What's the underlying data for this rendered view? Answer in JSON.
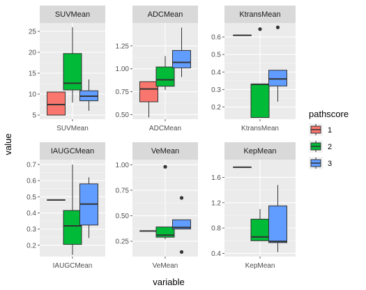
{
  "chart_data": {
    "type": "boxplot",
    "xlabel": "variable",
    "ylabel": "value",
    "legend": {
      "title": "pathscore",
      "position": "right",
      "items": [
        {
          "label": "1",
          "color": "#F8766D"
        },
        {
          "label": "2",
          "color": "#00BA38"
        },
        {
          "label": "3",
          "color": "#619CFF"
        }
      ]
    },
    "panels": [
      {
        "strip": "SUVMean",
        "category": "SUVMean",
        "ylim": [
          4.0,
          27.0
        ],
        "yticks": [
          5,
          10,
          15,
          20,
          25
        ],
        "ytick_labels": [
          "5",
          "10",
          "15",
          "20",
          "25"
        ],
        "boxes": [
          {
            "group": "1",
            "min": 5.0,
            "q1": 5.0,
            "median": 7.5,
            "q3": 10.5,
            "max": 10.5,
            "outliers": []
          },
          {
            "group": "2",
            "min": 8.0,
            "q1": 11.0,
            "median": 12.6,
            "q3": 19.7,
            "max": 26.0,
            "outliers": []
          },
          {
            "group": "3",
            "min": 6.0,
            "q1": 8.4,
            "median": 9.5,
            "q3": 10.8,
            "max": 13.5,
            "outliers": []
          }
        ]
      },
      {
        "strip": "ADCMean",
        "category": "ADCMean",
        "ylim": [
          0.45,
          1.5
        ],
        "yticks": [
          0.5,
          0.75,
          1.0,
          1.25
        ],
        "ytick_labels": [
          "0.50",
          "0.75",
          "1.00",
          "1.25"
        ],
        "boxes": [
          {
            "group": "1",
            "min": 0.47,
            "q1": 0.64,
            "median": 0.78,
            "q3": 0.86,
            "max": 0.86,
            "outliers": []
          },
          {
            "group": "2",
            "min": 0.77,
            "q1": 0.81,
            "median": 0.88,
            "q3": 1.02,
            "max": 1.14,
            "outliers": []
          },
          {
            "group": "3",
            "min": 0.91,
            "q1": 1.01,
            "median": 1.07,
            "q3": 1.2,
            "max": 1.45,
            "outliers": []
          }
        ]
      },
      {
        "strip": "KtransMean",
        "category": "KtransMean",
        "ylim": [
          0.13,
          0.68
        ],
        "yticks": [
          0.2,
          0.3,
          0.4,
          0.5,
          0.6
        ],
        "ytick_labels": [
          "0.2",
          "0.3",
          "0.4",
          "0.5",
          "0.6"
        ],
        "boxes": [
          {
            "group": "1",
            "min": 0.61,
            "q1": 0.61,
            "median": 0.61,
            "q3": 0.61,
            "max": 0.61,
            "outliers": []
          },
          {
            "group": "2",
            "min": 0.14,
            "q1": 0.14,
            "median": 0.33,
            "q3": 0.33,
            "max": 0.33,
            "outliers": [
              0.645
            ]
          },
          {
            "group": "3",
            "min": 0.23,
            "q1": 0.32,
            "median": 0.36,
            "q3": 0.41,
            "max": 0.41,
            "outliers": [
              0.655
            ]
          }
        ]
      },
      {
        "strip": "IAUGCMean",
        "category": "IAUGCMean",
        "ylim": [
          0.13,
          0.73
        ],
        "yticks": [
          0.2,
          0.3,
          0.4,
          0.5,
          0.6,
          0.7
        ],
        "ytick_labels": [
          "0.2",
          "0.3",
          "0.4",
          "0.5",
          "0.6",
          "0.7"
        ],
        "boxes": [
          {
            "group": "1",
            "min": 0.48,
            "q1": 0.48,
            "median": 0.48,
            "q3": 0.48,
            "max": 0.48,
            "outliers": []
          },
          {
            "group": "2",
            "min": 0.14,
            "q1": 0.205,
            "median": 0.32,
            "q3": 0.415,
            "max": 0.7,
            "outliers": []
          },
          {
            "group": "3",
            "min": 0.245,
            "q1": 0.325,
            "median": 0.455,
            "q3": 0.58,
            "max": 0.62,
            "outliers": []
          }
        ]
      },
      {
        "strip": "VeMean",
        "category": "VeMean",
        "ylim": [
          0.1,
          1.05
        ],
        "yticks": [
          0.25,
          0.5,
          0.75,
          1.0
        ],
        "ytick_labels": [
          "0.25",
          "0.50",
          "0.75",
          "1.00"
        ],
        "boxes": [
          {
            "group": "1",
            "min": 0.35,
            "q1": 0.35,
            "median": 0.35,
            "q3": 0.35,
            "max": 0.35,
            "outliers": []
          },
          {
            "group": "2",
            "min": 0.27,
            "q1": 0.29,
            "median": 0.31,
            "q3": 0.39,
            "max": 0.39,
            "outliers": [
              0.98
            ]
          },
          {
            "group": "3",
            "min": 0.37,
            "q1": 0.37,
            "median": 0.385,
            "q3": 0.46,
            "max": 0.46,
            "outliers": [
              0.675,
              0.145
            ]
          }
        ]
      },
      {
        "strip": "KepMean",
        "category": "KepMean",
        "ylim": [
          0.35,
          1.88
        ],
        "yticks": [
          0.4,
          0.8,
          1.2,
          1.6
        ],
        "ytick_labels": [
          "0.4",
          "0.8",
          "1.2",
          "1.6"
        ],
        "boxes": [
          {
            "group": "1",
            "min": 1.76,
            "q1": 1.76,
            "median": 1.76,
            "q3": 1.76,
            "max": 1.76,
            "outliers": []
          },
          {
            "group": "2",
            "min": 0.6,
            "q1": 0.6,
            "median": 0.66,
            "q3": 0.94,
            "max": 1.1,
            "outliers": []
          },
          {
            "group": "3",
            "min": 0.42,
            "q1": 0.57,
            "median": 0.59,
            "q3": 1.15,
            "max": 1.48,
            "outliers": []
          }
        ]
      }
    ]
  }
}
